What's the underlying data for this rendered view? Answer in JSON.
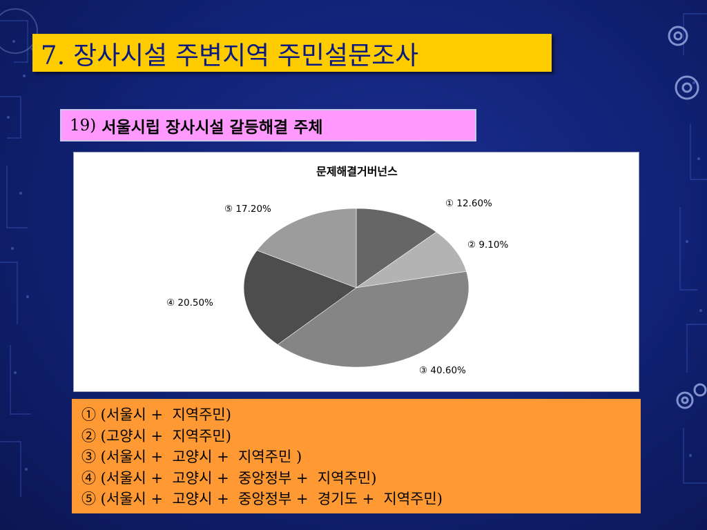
{
  "slide": {
    "title": "7. 장사시설 주변지역 주민설문조사",
    "subtitle_num": "19)",
    "subtitle_text": "서울시립 장사시설 갈등해결 주체"
  },
  "chart_data": {
    "type": "pie",
    "title": "문제해결거버넌스",
    "categories": [
      "①",
      "②",
      "③",
      "④",
      "⑤"
    ],
    "values": [
      12.6,
      9.1,
      40.6,
      20.5,
      17.2
    ],
    "labels": [
      "① 12.60%",
      "② 9.10%",
      "③ 40.60%",
      "④ 20.50%",
      "⑤ 17.20%"
    ],
    "colors": [
      "#666666",
      "#b3b3b3",
      "#858585",
      "#4d4d4d",
      "#9c9c9c"
    ],
    "start_angle_deg": 0,
    "direction": "clockwise",
    "legend": "none"
  },
  "legend_box": {
    "lines": [
      "① (서울시 +  지역주민)",
      "② (고양시 +  지역주민)",
      "③ (서울시 +  고양시 +  지역주민 )",
      "④ (서울시 +  고양시 +  중앙정부 +  지역주민)",
      "⑤ (서울시 +  고양시 +  중앙정부 +  경기도 +  지역주민)"
    ]
  },
  "colors": {
    "title_bg": "#ffcc00",
    "title_text": "#0a1a80",
    "subtitle_bg": "#ff99ff",
    "legend_bg": "#ff9933"
  }
}
